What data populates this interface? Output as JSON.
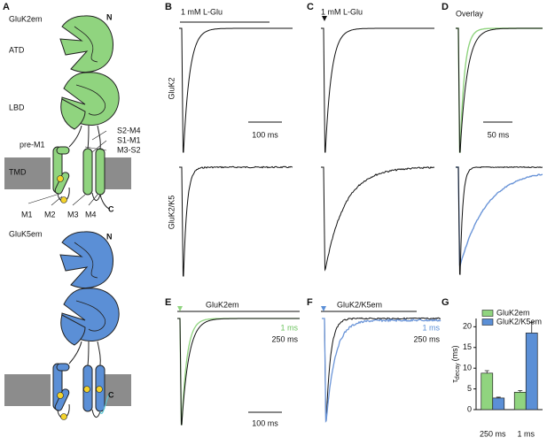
{
  "panel_labels": [
    "A",
    "B",
    "C",
    "D",
    "E",
    "F",
    "G"
  ],
  "panel_a": {
    "top_title": "GluK2em",
    "n1": "N",
    "domains": [
      "ATD",
      "LBD",
      "TMD"
    ],
    "linkers": [
      "pre-M1",
      "S2-M4",
      "S1-M1",
      "M3-S2"
    ],
    "helices": [
      "M1",
      "M2",
      "M3",
      "M4"
    ],
    "c1": "C",
    "bottom_title": "GluK5em",
    "n2": "N",
    "c2": "C"
  },
  "panel_b": {
    "stimulus": "1 mM L-Glu",
    "row_labels": [
      "GluK2",
      "GluK2/K5"
    ],
    "scale": "100 ms"
  },
  "panel_c": {
    "stimulus": "1 mM L-Glu"
  },
  "panel_d": {
    "title": "Overlay",
    "scale": "50 ms"
  },
  "panel_e": {
    "title": "GluK2em",
    "legend": [
      "1 ms",
      "250 ms"
    ],
    "scale": "100 ms"
  },
  "panel_f": {
    "title": "GluK2/K5em",
    "legend": [
      "1 ms",
      "250 ms"
    ]
  },
  "chart_data": {
    "type": "bar",
    "y_label_symbol": "τ",
    "y_label_subscript": "decay",
    "y_label_unit": "(ms)",
    "categories": [
      "250 ms",
      "1 ms"
    ],
    "series": [
      {
        "name": "GluK2em",
        "color": "#90d47f",
        "values": [
          8.8,
          4.2
        ],
        "errors": [
          0.6,
          0.4
        ]
      },
      {
        "name": "GluK2/K5em",
        "color": "#5b8fd6",
        "values": [
          2.8,
          18.5
        ],
        "errors": [
          0.2,
          2.5
        ]
      }
    ],
    "ylim": [
      0,
      22
    ],
    "yticks": [
      0,
      5,
      10,
      15,
      20
    ]
  }
}
